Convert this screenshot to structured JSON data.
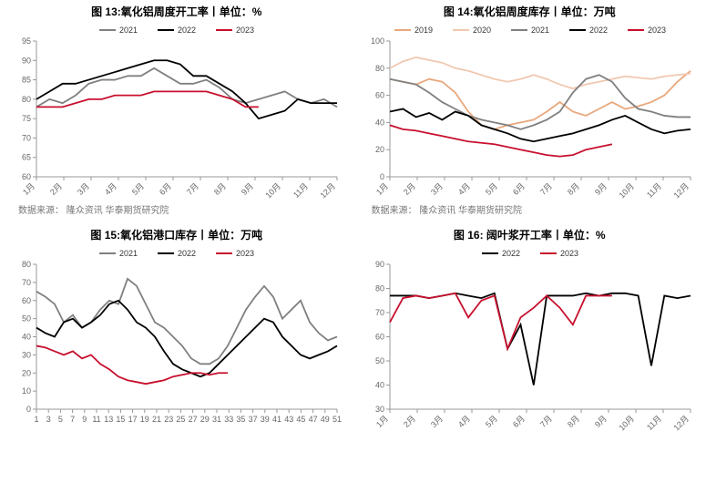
{
  "colors": {
    "c2019": "#e8a87c",
    "c2020": "#f0c8b0",
    "c2021": "#808080",
    "c2022": "#000000",
    "c2023": "#c8102e",
    "axis": "#999999",
    "bg": "#ffffff"
  },
  "source_text": "数据来源： 隆众资讯  华泰期货研究院",
  "chart13": {
    "title": "图 13:氧化铝周度开工率丨单位：%",
    "ylim": [
      60,
      95
    ],
    "ytick_step": 5,
    "xticks": [
      "1月",
      "2月",
      "3月",
      "4月",
      "5月",
      "6月",
      "7月",
      "8月",
      "9月",
      "10月",
      "11月",
      "12月"
    ],
    "legend": [
      {
        "label": "2021",
        "color": "#808080"
      },
      {
        "label": "2022",
        "color": "#000000"
      },
      {
        "label": "2023",
        "color": "#c8102e"
      }
    ],
    "series": {
      "2021": [
        78,
        80,
        79,
        81,
        84,
        85,
        85,
        86,
        86,
        88,
        86,
        84,
        84,
        85,
        83,
        80,
        79,
        80,
        81,
        82,
        80,
        79,
        80,
        78
      ],
      "2022": [
        80,
        82,
        84,
        84,
        85,
        86,
        87,
        88,
        89,
        90,
        90,
        89,
        86,
        86,
        84,
        82,
        79,
        75,
        76,
        77,
        80,
        79,
        79,
        79
      ],
      "2023": [
        78,
        78,
        78,
        79,
        80,
        80,
        81,
        81,
        81,
        82,
        82,
        82,
        82,
        82,
        81,
        80,
        78,
        78
      ]
    }
  },
  "chart14": {
    "title": "图 14:氧化铝周度库存丨单位：万吨",
    "ylim": [
      0,
      100
    ],
    "ytick_step": 20,
    "xticks": [
      "1月",
      "2月",
      "3月",
      "4月",
      "5月",
      "6月",
      "7月",
      "8月",
      "9月",
      "10月",
      "11月",
      "12月"
    ],
    "legend": [
      {
        "label": "2019",
        "color": "#e8a87c"
      },
      {
        "label": "2020",
        "color": "#f0c8b0"
      },
      {
        "label": "2021",
        "color": "#808080"
      },
      {
        "label": "2022",
        "color": "#000000"
      },
      {
        "label": "2023",
        "color": "#c8102e"
      }
    ],
    "series": {
      "2019": [
        72,
        70,
        68,
        72,
        70,
        62,
        48,
        38,
        35,
        38,
        40,
        42,
        48,
        55,
        48,
        45,
        50,
        55,
        50,
        52,
        55,
        60,
        70,
        78
      ],
      "2020": [
        80,
        85,
        88,
        86,
        84,
        80,
        78,
        75,
        72,
        70,
        72,
        75,
        72,
        68,
        65,
        68,
        70,
        72,
        74,
        73,
        72,
        74,
        75,
        76
      ],
      "2021": [
        72,
        70,
        68,
        62,
        55,
        50,
        45,
        42,
        40,
        38,
        35,
        38,
        42,
        48,
        62,
        72,
        75,
        70,
        58,
        50,
        48,
        45,
        44,
        44
      ],
      "2022": [
        48,
        50,
        44,
        47,
        42,
        48,
        45,
        38,
        35,
        32,
        28,
        26,
        28,
        30,
        32,
        35,
        38,
        42,
        45,
        40,
        35,
        32,
        34,
        35
      ],
      "2023": [
        38,
        35,
        34,
        32,
        30,
        28,
        26,
        25,
        24,
        22,
        20,
        18,
        16,
        15,
        16,
        20,
        22,
        24
      ]
    }
  },
  "chart15": {
    "title": "图 15:氧化铝港口库存丨单位：万吨",
    "ylim": [
      0,
      80
    ],
    "ytick_step": 10,
    "xticks": [
      "1",
      "3",
      "5",
      "7",
      "9",
      "11",
      "13",
      "15",
      "17",
      "19",
      "21",
      "23",
      "25",
      "27",
      "29",
      "31",
      "33",
      "35",
      "37",
      "39",
      "41",
      "43",
      "45",
      "47",
      "49",
      "51"
    ],
    "legend": [
      {
        "label": "2021",
        "color": "#808080"
      },
      {
        "label": "2022",
        "color": "#000000"
      },
      {
        "label": "2023",
        "color": "#c8102e"
      }
    ],
    "series": {
      "2021": [
        65,
        62,
        58,
        48,
        52,
        45,
        48,
        55,
        60,
        58,
        72,
        68,
        58,
        48,
        45,
        40,
        35,
        28,
        25,
        25,
        28,
        35,
        45,
        55,
        62,
        68,
        62,
        50,
        55,
        60,
        48,
        42,
        38,
        40
      ],
      "2022": [
        45,
        42,
        40,
        48,
        50,
        45,
        48,
        52,
        58,
        60,
        55,
        48,
        45,
        40,
        32,
        25,
        22,
        20,
        18,
        20,
        25,
        30,
        35,
        40,
        45,
        50,
        48,
        40,
        35,
        30,
        28,
        30,
        32,
        35
      ],
      "2023": [
        35,
        34,
        32,
        30,
        32,
        28,
        30,
        25,
        22,
        18,
        16,
        15,
        14,
        15,
        16,
        18,
        19,
        20,
        20,
        19,
        20,
        20
      ]
    }
  },
  "chart16": {
    "title": "图  16:  阔叶浆开工率丨单位：%",
    "ylim": [
      30,
      90
    ],
    "ytick_step": 10,
    "xticks": [
      "1月",
      "2月",
      "3月",
      "4月",
      "5月",
      "6月",
      "7月",
      "8月",
      "9月",
      "10月",
      "11月",
      "12月"
    ],
    "legend": [
      {
        "label": "2022",
        "color": "#000000"
      },
      {
        "label": "2023",
        "color": "#c8102e"
      }
    ],
    "series": {
      "2022": [
        77,
        77,
        77,
        76,
        77,
        78,
        77,
        76,
        78,
        55,
        65,
        40,
        77,
        77,
        77,
        78,
        77,
        78,
        78,
        77,
        48,
        77,
        76,
        77
      ],
      "2023": [
        66,
        76,
        77,
        76,
        77,
        78,
        68,
        75,
        77,
        55,
        68,
        72,
        77,
        72,
        65,
        77,
        77,
        77
      ]
    }
  }
}
